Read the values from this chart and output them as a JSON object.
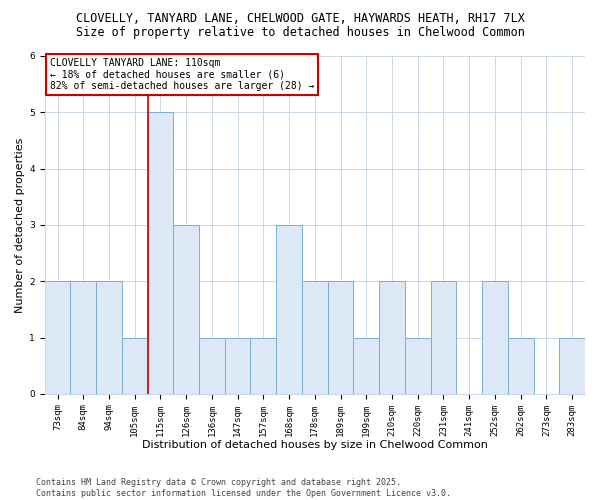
{
  "title_line1": "CLOVELLY, TANYARD LANE, CHELWOOD GATE, HAYWARDS HEATH, RH17 7LX",
  "title_line2": "Size of property relative to detached houses in Chelwood Common",
  "xlabel": "Distribution of detached houses by size in Chelwood Common",
  "ylabel": "Number of detached properties",
  "categories": [
    "73sqm",
    "84sqm",
    "94sqm",
    "105sqm",
    "115sqm",
    "126sqm",
    "136sqm",
    "147sqm",
    "157sqm",
    "168sqm",
    "178sqm",
    "189sqm",
    "199sqm",
    "210sqm",
    "220sqm",
    "231sqm",
    "241sqm",
    "252sqm",
    "262sqm",
    "273sqm",
    "283sqm"
  ],
  "values": [
    2,
    2,
    2,
    1,
    5,
    3,
    1,
    1,
    1,
    3,
    2,
    2,
    1,
    2,
    1,
    2,
    0,
    2,
    1,
    0,
    1
  ],
  "bar_color": "#dce8f5",
  "bar_edge_color": "#7aafd4",
  "vline_x_index": 4,
  "vline_color": "#cc0000",
  "annotation_title": "CLOVELLY TANYARD LANE: 110sqm",
  "annotation_line1": "← 18% of detached houses are smaller (6)",
  "annotation_line2": "82% of semi-detached houses are larger (28) →",
  "annotation_box_color": "#cc0000",
  "ylim": [
    0,
    6
  ],
  "yticks": [
    0,
    1,
    2,
    3,
    4,
    5,
    6
  ],
  "footer_line1": "Contains HM Land Registry data © Crown copyright and database right 2025.",
  "footer_line2": "Contains public sector information licensed under the Open Government Licence v3.0.",
  "bg_color": "#ffffff",
  "plot_bg_color": "#ffffff",
  "title_fontsize": 8.5,
  "subtitle_fontsize": 8.5,
  "axis_label_fontsize": 8,
  "tick_fontsize": 6.5,
  "annotation_fontsize": 7,
  "footer_fontsize": 6
}
